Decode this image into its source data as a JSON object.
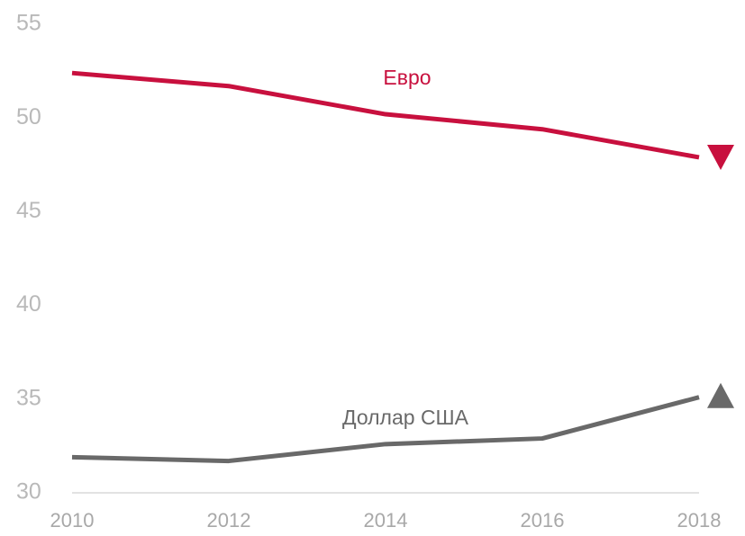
{
  "chart_data": {
    "type": "line",
    "x": [
      2010,
      2012,
      2014,
      2016,
      2018
    ],
    "xlim": [
      2010,
      2018
    ],
    "xticks": [
      2010,
      2012,
      2014,
      2016,
      2018
    ],
    "ylim": [
      30,
      55
    ],
    "yticks": [
      30,
      35,
      40,
      45,
      50,
      55
    ],
    "series": [
      {
        "name": "Евро",
        "color": "#c8103e",
        "values": [
          52.4,
          51.7,
          50.2,
          49.4,
          47.9
        ]
      },
      {
        "name": "Доллар США",
        "color": "#696969",
        "values": [
          31.9,
          31.7,
          32.6,
          32.9,
          35.1
        ]
      }
    ]
  }
}
